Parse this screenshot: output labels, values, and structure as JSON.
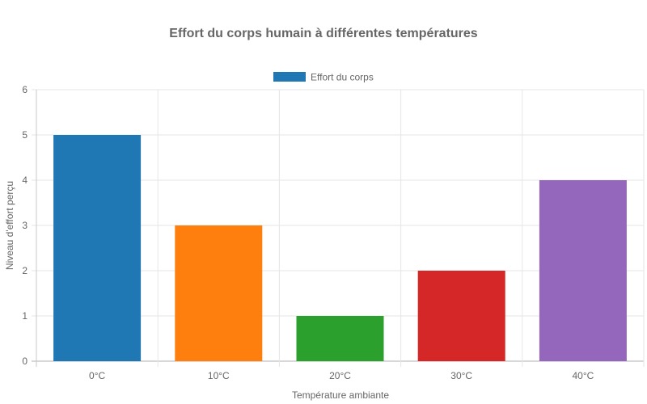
{
  "chart_data": {
    "type": "bar",
    "title": "Effort du corps humain à différentes températures",
    "xlabel": "Température ambiante",
    "ylabel": "Niveau d'effort perçu",
    "categories": [
      "0°C",
      "10°C",
      "20°C",
      "30°C",
      "40°C"
    ],
    "series": [
      {
        "name": "Effort du corps",
        "values": [
          5,
          3,
          1,
          2,
          4
        ],
        "colors": [
          "#1f77b4",
          "#ff7f0e",
          "#2ca02c",
          "#d62728",
          "#9467bd"
        ]
      }
    ],
    "ylim": [
      0,
      6
    ],
    "yticks": [
      "0",
      "1",
      "2",
      "3",
      "4",
      "5",
      "6"
    ],
    "grid": true,
    "legend_position": "top",
    "legend_swatch_color": "#1f77b4"
  }
}
